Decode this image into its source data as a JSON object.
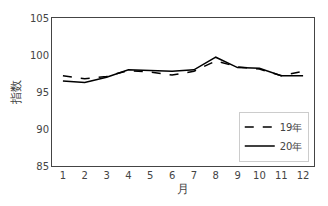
{
  "chart_data": {
    "type": "line",
    "x": [
      1,
      2,
      3,
      4,
      5,
      6,
      7,
      8,
      9,
      10,
      11,
      12
    ],
    "series": [
      {
        "name": "19年",
        "color": "#000000",
        "line_style": "dashed",
        "values": [
          97.2,
          96.8,
          97.1,
          97.9,
          97.7,
          97.3,
          97.8,
          99.2,
          98.4,
          98.1,
          97.2,
          97.8
        ]
      },
      {
        "name": "20年",
        "color": "#000000",
        "line_style": "solid",
        "values": [
          96.5,
          96.3,
          97.0,
          98.0,
          97.9,
          97.8,
          98.0,
          99.7,
          98.3,
          98.2,
          97.2,
          97.2
        ]
      }
    ],
    "xlabel": "月",
    "ylabel": "指数",
    "xlim": [
      0.5,
      12.5
    ],
    "xticks": [
      1,
      2,
      3,
      4,
      5,
      6,
      7,
      8,
      9,
      10,
      11,
      12
    ],
    "ylim": [
      85,
      105
    ],
    "yticks": [
      85,
      90,
      95,
      100,
      105
    ],
    "grid": false,
    "legend": "lower right"
  }
}
